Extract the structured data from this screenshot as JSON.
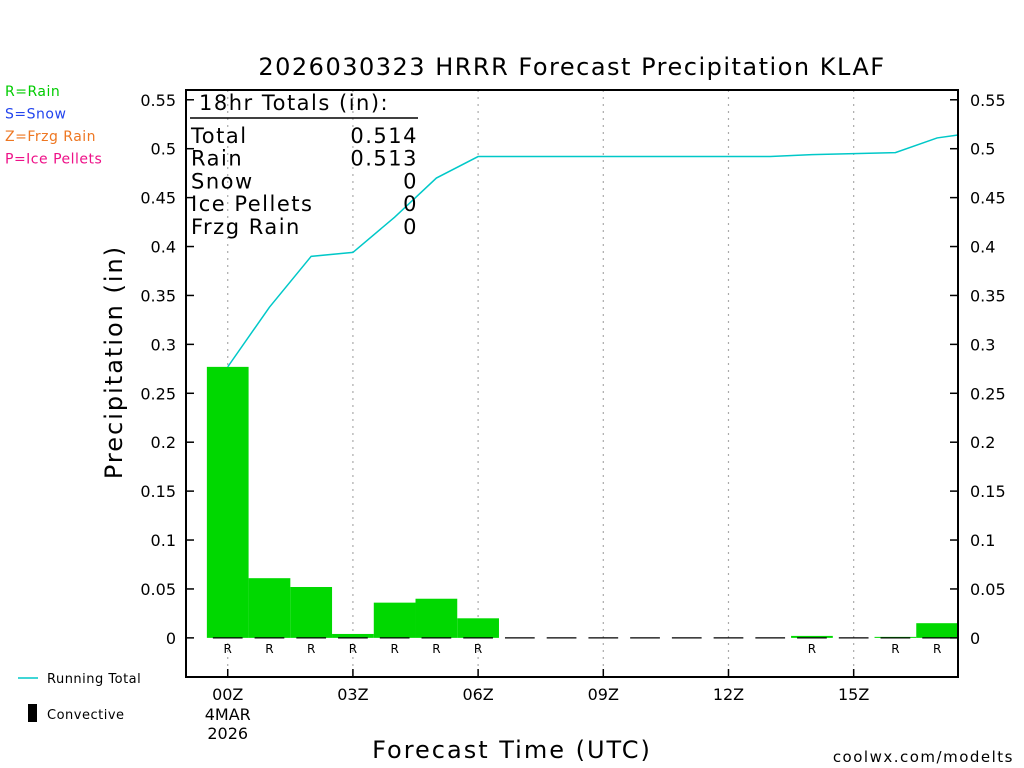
{
  "chart_data": {
    "type": "bar",
    "title": "2026030323 HRRR Forecast Precipitation KLAF",
    "xlabel": "Forecast Time (UTC)",
    "ylabel": "Precipitation (in)",
    "ylim": [
      -0.04,
      0.56
    ],
    "xlim": [
      -1,
      17.5
    ],
    "y_ticks": [
      "0",
      "0.05",
      "0.1",
      "0.15",
      "0.2",
      "0.25",
      "0.3",
      "0.35",
      "0.4",
      "0.45",
      "0.5",
      "0.55"
    ],
    "x_ticks": [
      {
        "hour": 0,
        "label": "00Z"
      },
      {
        "hour": 3,
        "label": "03Z"
      },
      {
        "hour": 6,
        "label": "06Z"
      },
      {
        "hour": 9,
        "label": "09Z"
      },
      {
        "hour": 12,
        "label": "12Z"
      },
      {
        "hour": 15,
        "label": "15Z"
      }
    ],
    "date_label": [
      "4MAR",
      "2026"
    ],
    "grid": "vertical dotted",
    "bar_color": "#00d800",
    "line_color": "#00c8c8",
    "hourly": [
      {
        "hour": 0,
        "precip": 0.277,
        "type": "R"
      },
      {
        "hour": 1,
        "precip": 0.061,
        "type": "R"
      },
      {
        "hour": 2,
        "precip": 0.052,
        "type": "R"
      },
      {
        "hour": 3,
        "precip": 0.004,
        "type": "R"
      },
      {
        "hour": 4,
        "precip": 0.036,
        "type": "R"
      },
      {
        "hour": 5,
        "precip": 0.04,
        "type": "R"
      },
      {
        "hour": 6,
        "precip": 0.02,
        "type": "R"
      },
      {
        "hour": 7,
        "precip": 0,
        "type": ""
      },
      {
        "hour": 8,
        "precip": 0,
        "type": ""
      },
      {
        "hour": 9,
        "precip": 0,
        "type": ""
      },
      {
        "hour": 10,
        "precip": 0,
        "type": ""
      },
      {
        "hour": 11,
        "precip": 0,
        "type": ""
      },
      {
        "hour": 12,
        "precip": 0,
        "type": ""
      },
      {
        "hour": 13,
        "precip": 0,
        "type": ""
      },
      {
        "hour": 14,
        "precip": 0.002,
        "type": "R"
      },
      {
        "hour": 15,
        "precip": 0,
        "type": ""
      },
      {
        "hour": 16,
        "precip": 0.001,
        "type": "R"
      },
      {
        "hour": 17,
        "precip": 0.015,
        "type": "R"
      }
    ],
    "running_total": [
      {
        "hour": 0,
        "value": 0.277
      },
      {
        "hour": 1,
        "value": 0.338
      },
      {
        "hour": 2,
        "value": 0.39
      },
      {
        "hour": 3,
        "value": 0.394
      },
      {
        "hour": 4,
        "value": 0.43
      },
      {
        "hour": 5,
        "value": 0.47
      },
      {
        "hour": 6,
        "value": 0.492
      },
      {
        "hour": 7,
        "value": 0.492
      },
      {
        "hour": 8,
        "value": 0.492
      },
      {
        "hour": 9,
        "value": 0.492
      },
      {
        "hour": 10,
        "value": 0.492
      },
      {
        "hour": 11,
        "value": 0.492
      },
      {
        "hour": 12,
        "value": 0.492
      },
      {
        "hour": 13,
        "value": 0.492
      },
      {
        "hour": 14,
        "value": 0.494
      },
      {
        "hour": 15,
        "value": 0.495
      },
      {
        "hour": 16,
        "value": 0.496
      },
      {
        "hour": 17,
        "value": 0.511
      },
      {
        "hour": 17.5,
        "value": 0.514
      }
    ],
    "totals_box": {
      "heading": "18hr Totals (in):",
      "rows": [
        {
          "label": "Total",
          "value": "0.514"
        },
        {
          "label": "Rain",
          "value": "0.513"
        },
        {
          "label": "Snow",
          "value": "0"
        },
        {
          "label": "Ice Pellets",
          "value": "0"
        },
        {
          "label": "Frzg Rain",
          "value": "0"
        }
      ]
    },
    "type_legend": [
      {
        "text": "R=Rain",
        "color": "#00cc00"
      },
      {
        "text": "S=Snow",
        "color": "#2244ee"
      },
      {
        "text": "Z=Frzg Rain",
        "color": "#ee7722"
      },
      {
        "text": "P=Ice Pellets",
        "color": "#ee1188"
      }
    ],
    "bottom_legend": [
      {
        "key": "line",
        "text": "Running Total"
      },
      {
        "key": "bar",
        "text": "Convective"
      }
    ]
  },
  "credit": "coolwx.com/modelts",
  "colors": {
    "credit": "#e02020",
    "grid": "#aaaaaa",
    "type_marker": "#00cc00"
  }
}
